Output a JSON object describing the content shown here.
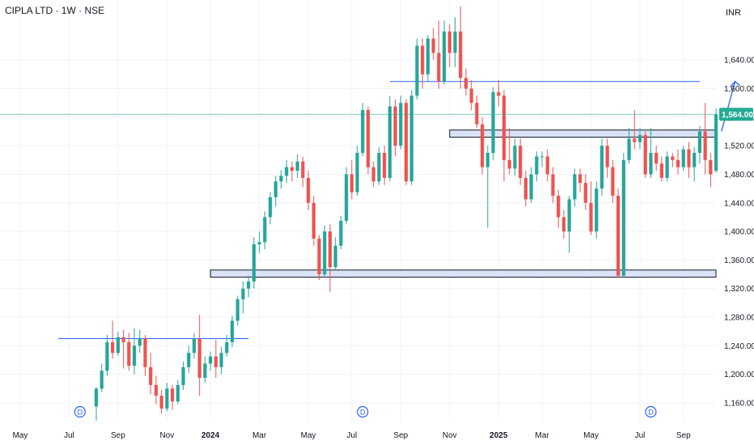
{
  "header": {
    "title": "CIPLA LTD · 1W · NSE",
    "currency": "INR"
  },
  "colors": {
    "up": "#26a69a",
    "down": "#ef5350",
    "grid": "#f0f3fa",
    "line": "#2962ff",
    "zone_fill": "#d1dcf6",
    "zone_stroke": "#131722",
    "price_badge": "#22ab94"
  },
  "chart_data": {
    "type": "candlestick",
    "title": "CIPLA LTD · 1W · NSE",
    "ylim": [
      1135,
      1715
    ],
    "y_ticks": [
      1160,
      1200,
      1240,
      1280,
      1320,
      1360,
      1400,
      1440,
      1480,
      1520,
      1560,
      1600,
      1640
    ],
    "y_tick_labels": [
      "1,160.00",
      "1,200.00",
      "1,240.00",
      "1,280.00",
      "1,320.00",
      "1,360.00",
      "1,400.00",
      "1,440.00",
      "1,480.00",
      "1,520.00",
      "1,560.00",
      "1,600.00",
      "1,640.00"
    ],
    "x_labels": [
      {
        "label": "May",
        "bar": -14,
        "bold": false
      },
      {
        "label": "Jul",
        "bar": -5,
        "bold": false
      },
      {
        "label": "Sep",
        "bar": 4,
        "bold": false
      },
      {
        "label": "Nov",
        "bar": 13,
        "bold": false
      },
      {
        "label": "2024",
        "bar": 21,
        "bold": true
      },
      {
        "label": "Mar",
        "bar": 30,
        "bold": false
      },
      {
        "label": "May",
        "bar": 39,
        "bold": false
      },
      {
        "label": "Jul",
        "bar": 47,
        "bold": false
      },
      {
        "label": "Sep",
        "bar": 56,
        "bold": false
      },
      {
        "label": "Nov",
        "bar": 65,
        "bold": false
      },
      {
        "label": "2025",
        "bar": 74,
        "bold": true
      },
      {
        "label": "Mar",
        "bar": 82,
        "bold": false
      },
      {
        "label": "May",
        "bar": 91,
        "bold": false
      },
      {
        "label": "Jul",
        "bar": 100,
        "bold": false
      },
      {
        "label": "Sep",
        "bar": 108,
        "bold": false
      }
    ],
    "candles": [
      [
        1155,
        1180,
        1135,
        1182
      ],
      [
        1180,
        1205,
        1175,
        1215
      ],
      [
        1205,
        1245,
        1198,
        1255
      ],
      [
        1245,
        1230,
        1222,
        1275
      ],
      [
        1230,
        1252,
        1226,
        1260
      ],
      [
        1252,
        1245,
        1208,
        1262
      ],
      [
        1245,
        1212,
        1205,
        1258
      ],
      [
        1212,
        1240,
        1200,
        1265
      ],
      [
        1240,
        1250,
        1230,
        1262
      ],
      [
        1250,
        1210,
        1198,
        1255
      ],
      [
        1210,
        1185,
        1172,
        1230
      ],
      [
        1185,
        1170,
        1158,
        1198
      ],
      [
        1170,
        1152,
        1145,
        1178
      ],
      [
        1152,
        1180,
        1148,
        1188
      ],
      [
        1180,
        1162,
        1150,
        1185
      ],
      [
        1162,
        1185,
        1158,
        1192
      ],
      [
        1185,
        1210,
        1178,
        1218
      ],
      [
        1210,
        1230,
        1202,
        1240
      ],
      [
        1230,
        1250,
        1222,
        1258
      ],
      [
        1250,
        1195,
        1170,
        1283
      ],
      [
        1195,
        1215,
        1188,
        1225
      ],
      [
        1215,
        1225,
        1205,
        1232
      ],
      [
        1225,
        1210,
        1195,
        1248
      ],
      [
        1210,
        1230,
        1200,
        1238
      ],
      [
        1230,
        1245,
        1225,
        1255
      ],
      [
        1245,
        1275,
        1238,
        1282
      ],
      [
        1275,
        1305,
        1268,
        1310
      ],
      [
        1305,
        1320,
        1285,
        1330
      ],
      [
        1320,
        1330,
        1308,
        1338
      ],
      [
        1330,
        1382,
        1320,
        1392
      ],
      [
        1382,
        1385,
        1370,
        1400
      ],
      [
        1385,
        1420,
        1375,
        1428
      ],
      [
        1420,
        1448,
        1410,
        1455
      ],
      [
        1448,
        1470,
        1435,
        1478
      ],
      [
        1470,
        1478,
        1460,
        1486
      ],
      [
        1478,
        1490,
        1468,
        1500
      ],
      [
        1490,
        1485,
        1470,
        1498
      ],
      [
        1485,
        1498,
        1475,
        1508
      ],
      [
        1498,
        1475,
        1462,
        1505
      ],
      [
        1475,
        1440,
        1430,
        1485
      ],
      [
        1440,
        1390,
        1380,
        1450
      ],
      [
        1390,
        1340,
        1332,
        1395
      ],
      [
        1340,
        1400,
        1335,
        1408
      ],
      [
        1400,
        1350,
        1315,
        1410
      ],
      [
        1350,
        1380,
        1345,
        1392
      ],
      [
        1380,
        1415,
        1375,
        1422
      ],
      [
        1415,
        1480,
        1410,
        1490
      ],
      [
        1480,
        1455,
        1445,
        1500
      ],
      [
        1455,
        1510,
        1450,
        1520
      ],
      [
        1510,
        1570,
        1505,
        1580
      ],
      [
        1570,
        1490,
        1480,
        1575
      ],
      [
        1490,
        1470,
        1462,
        1498
      ],
      [
        1470,
        1510,
        1465,
        1518
      ],
      [
        1510,
        1475,
        1465,
        1520
      ],
      [
        1475,
        1575,
        1470,
        1590
      ],
      [
        1575,
        1520,
        1505,
        1585
      ],
      [
        1520,
        1580,
        1515,
        1590
      ],
      [
        1580,
        1470,
        1465,
        1585
      ],
      [
        1470,
        1590,
        1465,
        1598
      ],
      [
        1590,
        1660,
        1585,
        1670
      ],
      [
        1660,
        1620,
        1600,
        1670
      ],
      [
        1620,
        1670,
        1610,
        1675
      ],
      [
        1670,
        1650,
        1640,
        1685
      ],
      [
        1650,
        1610,
        1600,
        1695
      ],
      [
        1610,
        1680,
        1605,
        1695
      ],
      [
        1680,
        1650,
        1630,
        1690
      ],
      [
        1650,
        1680,
        1630,
        1700
      ],
      [
        1680,
        1615,
        1600,
        1715
      ],
      [
        1615,
        1600,
        1590,
        1628
      ],
      [
        1600,
        1580,
        1570,
        1612
      ],
      [
        1580,
        1550,
        1545,
        1590
      ],
      [
        1550,
        1490,
        1480,
        1560
      ],
      [
        1490,
        1510,
        1405,
        1520
      ],
      [
        1510,
        1595,
        1500,
        1602
      ],
      [
        1595,
        1590,
        1575,
        1612
      ],
      [
        1590,
        1500,
        1470,
        1598
      ],
      [
        1500,
        1488,
        1480,
        1545
      ],
      [
        1488,
        1520,
        1478,
        1530
      ],
      [
        1520,
        1475,
        1465,
        1530
      ],
      [
        1475,
        1445,
        1435,
        1485
      ],
      [
        1445,
        1480,
        1440,
        1490
      ],
      [
        1480,
        1505,
        1470,
        1512
      ],
      [
        1505,
        1505,
        1490,
        1512
      ],
      [
        1505,
        1480,
        1470,
        1515
      ],
      [
        1480,
        1450,
        1440,
        1490
      ],
      [
        1450,
        1420,
        1405,
        1458
      ],
      [
        1420,
        1400,
        1390,
        1430
      ],
      [
        1400,
        1445,
        1370,
        1450
      ],
      [
        1445,
        1480,
        1435,
        1488
      ],
      [
        1480,
        1468,
        1455,
        1488
      ],
      [
        1468,
        1440,
        1430,
        1480
      ],
      [
        1440,
        1400,
        1395,
        1470
      ],
      [
        1400,
        1460,
        1390,
        1470
      ],
      [
        1460,
        1520,
        1450,
        1530
      ],
      [
        1520,
        1490,
        1475,
        1530
      ],
      [
        1490,
        1450,
        1440,
        1500
      ],
      [
        1450,
        1338,
        1335,
        1460
      ],
      [
        1338,
        1500,
        1335,
        1510
      ],
      [
        1500,
        1530,
        1495,
        1545
      ],
      [
        1530,
        1525,
        1515,
        1570
      ],
      [
        1525,
        1535,
        1515,
        1545
      ],
      [
        1535,
        1480,
        1475,
        1540
      ],
      [
        1480,
        1510,
        1475,
        1545
      ],
      [
        1510,
        1495,
        1485,
        1520
      ],
      [
        1495,
        1475,
        1470,
        1505
      ],
      [
        1475,
        1505,
        1470,
        1512
      ],
      [
        1505,
        1500,
        1490,
        1510
      ],
      [
        1500,
        1490,
        1480,
        1515
      ],
      [
        1490,
        1515,
        1485,
        1520
      ],
      [
        1515,
        1490,
        1475,
        1525
      ],
      [
        1490,
        1510,
        1470,
        1518
      ],
      [
        1510,
        1540,
        1495,
        1548
      ],
      [
        1540,
        1500,
        1480,
        1580
      ],
      [
        1500,
        1480,
        1462,
        1510
      ],
      [
        1485,
        1564,
        1482,
        1572
      ]
    ],
    "current_price": 1564,
    "current_price_label": "1,564.00",
    "levels": [
      {
        "kind": "hline",
        "y": 1250,
        "from_bar": -7,
        "to_bar": 28
      },
      {
        "kind": "hline",
        "y": 1610,
        "from_bar": 54,
        "to_bar": 111
      },
      {
        "kind": "zone",
        "y1": 1336,
        "y2": 1346,
        "from_bar": 21,
        "to_bar": 116
      },
      {
        "kind": "zone",
        "y1": 1532,
        "y2": 1542,
        "from_bar": 65,
        "to_bar": 120
      }
    ],
    "projection": [
      [
        115,
        1540
      ],
      [
        117.5,
        1610
      ]
    ],
    "event_markers": [
      {
        "label": "D",
        "bar": -3
      },
      {
        "label": "D",
        "bar": 49
      },
      {
        "label": "D",
        "bar": 102
      }
    ]
  }
}
